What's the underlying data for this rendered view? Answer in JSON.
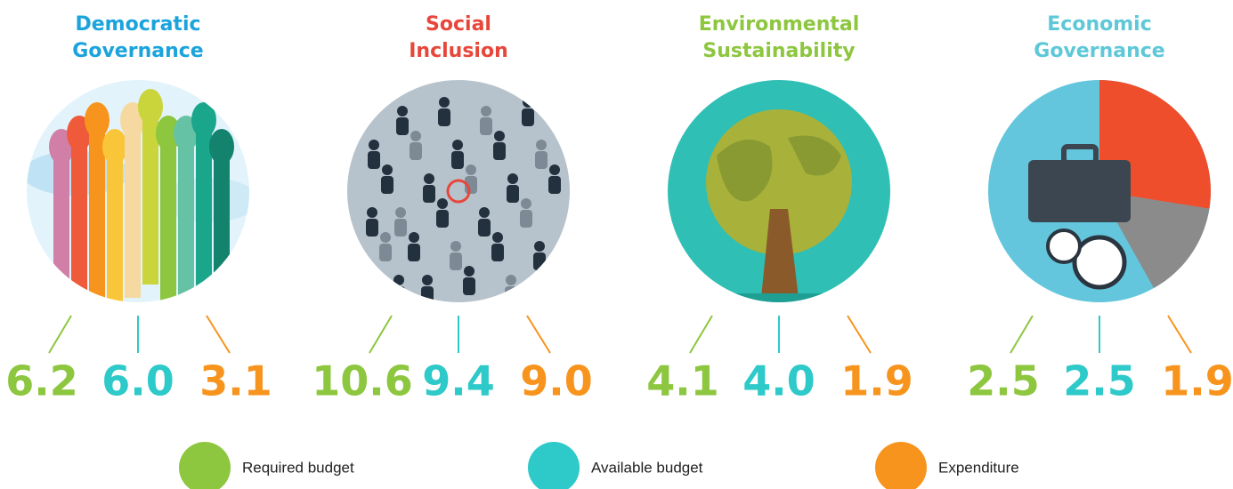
{
  "panels": [
    {
      "title_lines": [
        "Democratic",
        "Governance"
      ],
      "title_color": "#1ba3dc",
      "values": [
        "6.2",
        "6.0",
        "3.1"
      ]
    },
    {
      "title_lines": [
        "Social",
        "Inclusion"
      ],
      "title_color": "#e8463a",
      "values": [
        "10.6",
        "9.4",
        "9.0"
      ]
    },
    {
      "title_lines": [
        "Environmental",
        "Sustainability"
      ],
      "title_color": "#8dc63f",
      "values": [
        "4.1",
        "4.0",
        "1.9"
      ]
    },
    {
      "title_lines": [
        "Economic",
        "Governance"
      ],
      "title_color": "#5ec8d8",
      "values": [
        "2.5",
        "2.5",
        "1.9"
      ]
    }
  ],
  "legend": [
    {
      "label": "Required budget",
      "color": "#8dc63f"
    },
    {
      "label": "Available budget",
      "color": "#2ec9c9"
    },
    {
      "label": "Expenditure",
      "color": "#f7941d"
    }
  ]
}
